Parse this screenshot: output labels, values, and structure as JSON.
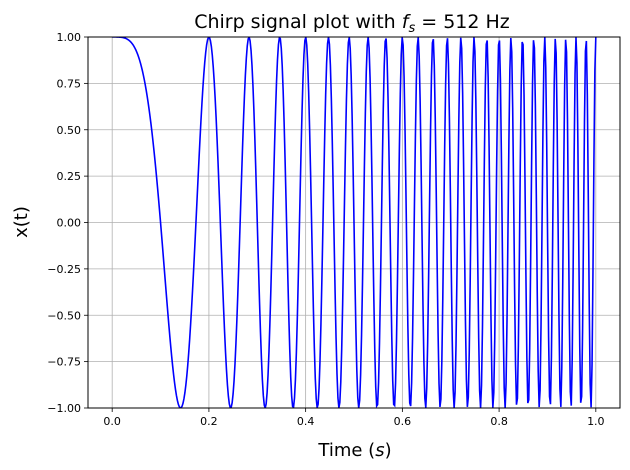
{
  "chart_data": {
    "type": "line",
    "title_prefix": "Chirp signal plot with ",
    "title_var": "f",
    "title_sub": "s",
    "title_suffix": " = 512 Hz",
    "xlabel_prefix": "Time (",
    "xlabel_var": "s",
    "xlabel_suffix": ")",
    "ylabel": "x(t)",
    "xlim": [
      -0.05,
      1.05
    ],
    "ylim": [
      -1.0,
      1.0
    ],
    "xticks": [
      0.0,
      0.2,
      0.4,
      0.6,
      0.8,
      1.0
    ],
    "xtick_labels": [
      "0.0",
      "0.2",
      "0.4",
      "0.6",
      "0.8",
      "1.0"
    ],
    "yticks": [
      -1.0,
      -0.75,
      -0.5,
      -0.25,
      0.0,
      0.25,
      0.5,
      0.75,
      1.0
    ],
    "ytick_labels": [
      "−1.00",
      "−0.75",
      "−0.50",
      "−0.25",
      "0.00",
      "0.25",
      "0.50",
      "0.75",
      "1.00"
    ],
    "grid": true,
    "series": [
      {
        "color": "#0000ff",
        "function": "cos(2*pi*(f0*t + (f1-f0)/2*t^2))",
        "f0": 0,
        "f1": 50,
        "t_start": 0.0,
        "t_end": 1.0,
        "sample_rate": 512
      }
    ]
  }
}
